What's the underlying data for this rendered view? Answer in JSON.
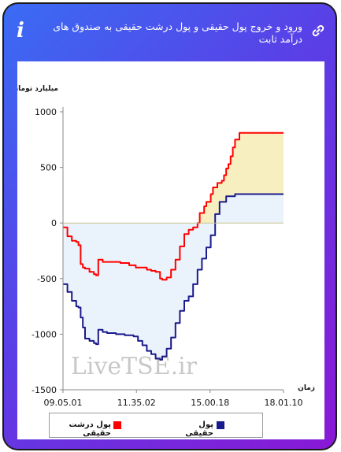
{
  "header": {
    "title": "ورود و خروج پول حقیقی و پول درشت حقیقی به صندوق های درآمد ثابت",
    "info_glyph": "i",
    "info_icon": "info-icon",
    "link_icon": "link-icon"
  },
  "watermark": "LiveTSE.ir",
  "colors": {
    "gradient_start": "#3a6cf4",
    "gradient_end": "#8a18d6",
    "series_real_money": "#1a1a8c",
    "series_big_money": "#ff0000",
    "fill_real_money": "#eaf3fb",
    "fill_big_money": "#f7efbf"
  },
  "chart_data": {
    "type": "area",
    "ylabel": "میلیارد تومان",
    "xlabel": "زمان",
    "ylim": [
      -1500,
      1000
    ],
    "yticks": [
      "1000",
      "500",
      "0",
      "-500",
      "-1000",
      "-1500"
    ],
    "xticks": [
      "09.05.01",
      "11.35.02",
      "15.00.18",
      "18.01.10"
    ],
    "x_domain": [
      0,
      100
    ],
    "xtick_positions": [
      0,
      33.3,
      66.7,
      100
    ],
    "legend_position": "bottom",
    "grid": false,
    "series": [
      {
        "name": "پول حقیقی",
        "color": "#1a1a8c",
        "points": [
          [
            0,
            -550
          ],
          [
            2,
            -620
          ],
          [
            4,
            -700
          ],
          [
            6,
            -750
          ],
          [
            7,
            -760
          ],
          [
            8,
            -850
          ],
          [
            9,
            -940
          ],
          [
            10,
            -1040
          ],
          [
            12,
            -1060
          ],
          [
            14,
            -1080
          ],
          [
            15,
            -1090
          ],
          [
            16,
            -960
          ],
          [
            18,
            -980
          ],
          [
            20,
            -990
          ],
          [
            24,
            -1000
          ],
          [
            28,
            -1010
          ],
          [
            32,
            -1020
          ],
          [
            34,
            -1060
          ],
          [
            36,
            -1100
          ],
          [
            38,
            -1150
          ],
          [
            40,
            -1180
          ],
          [
            42,
            -1220
          ],
          [
            44,
            -1230
          ],
          [
            45,
            -1200
          ],
          [
            47,
            -1130
          ],
          [
            49,
            -1030
          ],
          [
            51,
            -900
          ],
          [
            53,
            -790
          ],
          [
            55,
            -700
          ],
          [
            57,
            -660
          ],
          [
            59,
            -550
          ],
          [
            61,
            -420
          ],
          [
            63,
            -320
          ],
          [
            65,
            -220
          ],
          [
            67,
            -110
          ],
          [
            69,
            80
          ],
          [
            71,
            190
          ],
          [
            74,
            240
          ],
          [
            78,
            260
          ],
          [
            100,
            260
          ]
        ]
      },
      {
        "name": "پول درشت حقیقی",
        "color": "#ff0000",
        "points": [
          [
            0,
            -40
          ],
          [
            2,
            -120
          ],
          [
            4,
            -160
          ],
          [
            6,
            -170
          ],
          [
            7,
            -200
          ],
          [
            8,
            -370
          ],
          [
            9,
            -400
          ],
          [
            10,
            -410
          ],
          [
            12,
            -440
          ],
          [
            14,
            -460
          ],
          [
            15,
            -470
          ],
          [
            16,
            -330
          ],
          [
            18,
            -350
          ],
          [
            22,
            -350
          ],
          [
            26,
            -360
          ],
          [
            30,
            -380
          ],
          [
            33,
            -400
          ],
          [
            35,
            -400
          ],
          [
            38,
            -420
          ],
          [
            40,
            -430
          ],
          [
            42,
            -440
          ],
          [
            44,
            -500
          ],
          [
            45,
            -510
          ],
          [
            47,
            -490
          ],
          [
            49,
            -420
          ],
          [
            51,
            -330
          ],
          [
            53,
            -210
          ],
          [
            55,
            -100
          ],
          [
            57,
            -60
          ],
          [
            59,
            -40
          ],
          [
            61,
            0
          ],
          [
            62,
            90
          ],
          [
            64,
            150
          ],
          [
            65,
            190
          ],
          [
            67,
            260
          ],
          [
            68,
            320
          ],
          [
            70,
            360
          ],
          [
            72,
            380
          ],
          [
            73,
            430
          ],
          [
            74,
            490
          ],
          [
            75,
            530
          ],
          [
            76,
            600
          ],
          [
            77,
            680
          ],
          [
            78,
            750
          ],
          [
            80,
            810
          ],
          [
            100,
            810
          ]
        ]
      }
    ]
  }
}
